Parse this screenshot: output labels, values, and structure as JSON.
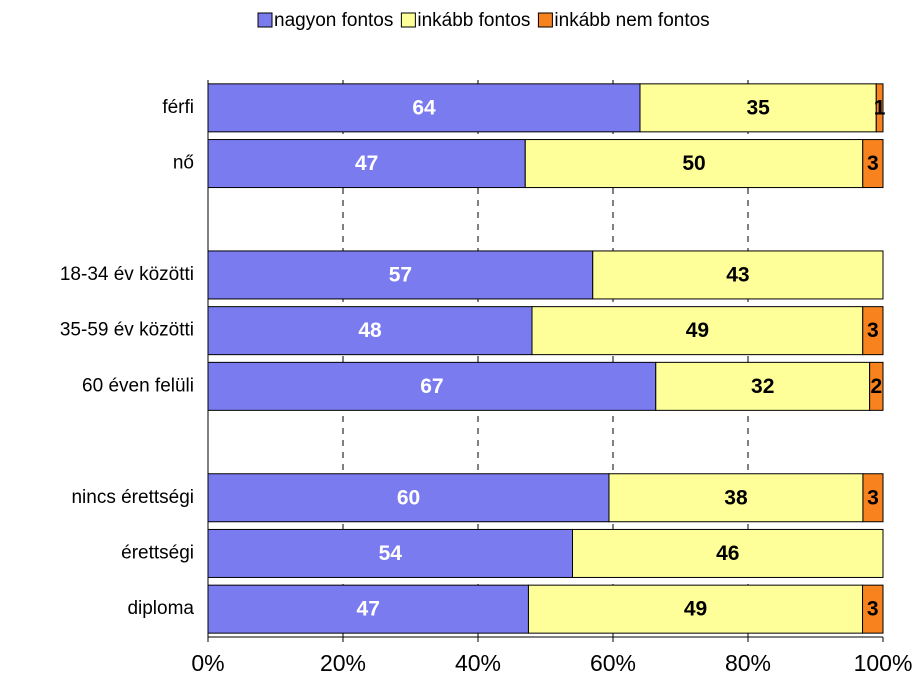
{
  "chart_data": {
    "type": "bar",
    "orientation": "horizontal",
    "stacked": "percent",
    "categories": [
      "férfi",
      "nő",
      null,
      "18-34 év közötti",
      "35-59 év közötti",
      "60 éven felüli",
      null,
      "nincs érettségi",
      "érettségi",
      "diploma"
    ],
    "series": [
      {
        "name": "nagyon fontos",
        "color": "#7b7bf0",
        "label_color": "#ffffff",
        "values": [
          64,
          47,
          null,
          57,
          48,
          67,
          null,
          60,
          54,
          47
        ]
      },
      {
        "name": "inkább fontos",
        "color": "#ffff99",
        "label_color": "#000000",
        "values": [
          35,
          50,
          null,
          43,
          49,
          32,
          null,
          38,
          46,
          49
        ]
      },
      {
        "name": "inkább nem fontos",
        "color": "#f7821e",
        "label_color": "#000000",
        "values": [
          1,
          3,
          null,
          null,
          3,
          2,
          null,
          3,
          null,
          3
        ]
      }
    ],
    "xlim": [
      0,
      100
    ],
    "xticks": [
      {
        "value": 0,
        "label": "0%"
      },
      {
        "value": 20,
        "label": "20%"
      },
      {
        "value": 40,
        "label": "40%"
      },
      {
        "value": 60,
        "label": "60%"
      },
      {
        "value": 80,
        "label": "80%"
      },
      {
        "value": 100,
        "label": "100%"
      }
    ],
    "grid": true,
    "legend": "top"
  }
}
